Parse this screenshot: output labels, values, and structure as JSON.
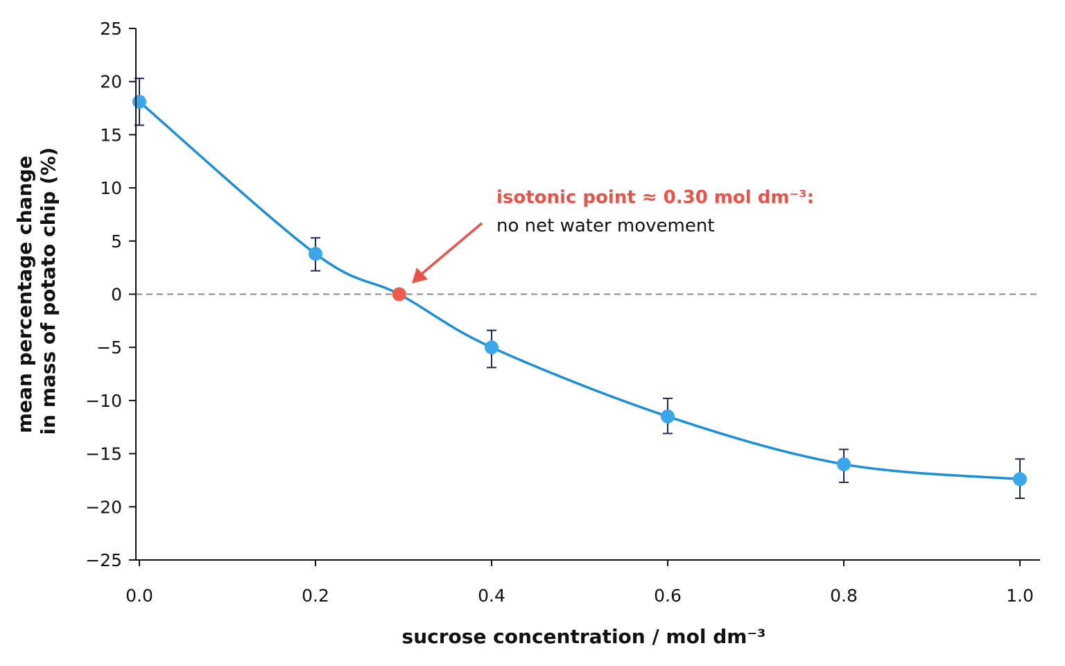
{
  "chart_data": {
    "type": "scatter",
    "xlabel": "sucrose concentration / mol dm⁻³",
    "ylabel_lines": [
      "mean percentage change",
      "in mass of potato chip (%)"
    ],
    "xlim": [
      0.0,
      1.0
    ],
    "ylim": [
      -25,
      25
    ],
    "x_ticks": [
      "0.0",
      "0.2",
      "0.4",
      "0.6",
      "0.8",
      "1.0"
    ],
    "y_ticks": [
      "25",
      "20",
      "15",
      "10",
      "5",
      "0",
      "−5",
      "−10",
      "−15",
      "−20",
      "−25"
    ],
    "grid": false,
    "points": [
      {
        "x": 0.0,
        "y": 18.1,
        "err_low": 15.9,
        "err_high": 20.3
      },
      {
        "x": 0.2,
        "y": 3.8,
        "err_low": 2.2,
        "err_high": 5.3
      },
      {
        "x": 0.4,
        "y": -5.0,
        "err_low": -6.9,
        "err_high": -3.4
      },
      {
        "x": 0.6,
        "y": -11.5,
        "err_low": -13.1,
        "err_high": -9.8
      },
      {
        "x": 0.8,
        "y": -16.0,
        "err_low": -17.7,
        "err_high": -14.6
      },
      {
        "x": 1.0,
        "y": -17.4,
        "err_low": -19.2,
        "err_high": -15.5
      }
    ],
    "isotonic_point": {
      "x": 0.295,
      "y": 0.0
    },
    "reference_line_y": 0,
    "annotation": {
      "line1": "isotonic point ≈ 0.30 mol dm⁻³:",
      "line2": "no net water movement"
    },
    "colors": {
      "curve": "#1a8fd8",
      "points": "#3aa7ea",
      "isotonic": "#f05a4a",
      "annotation": "#e8534a",
      "reference_line": "#888888",
      "error_bars": "#1b2a4a"
    }
  }
}
